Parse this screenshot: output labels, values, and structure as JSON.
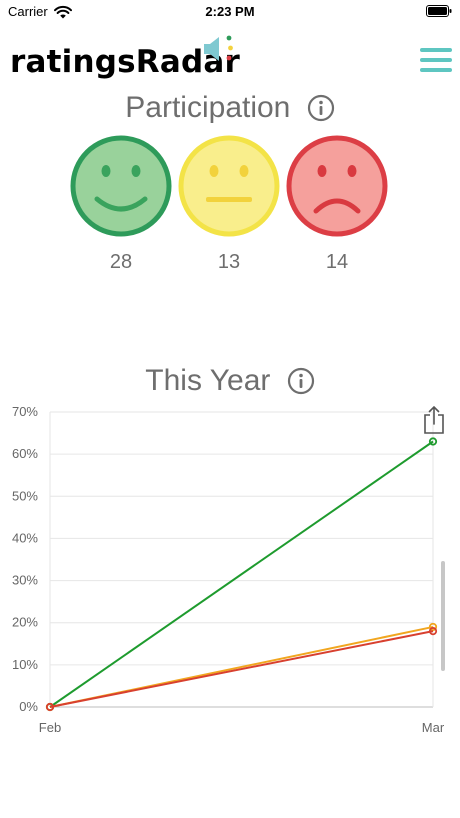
{
  "status_bar": {
    "carrier": "Carrier",
    "time": "2:23 PM",
    "wifi_icon": "wifi-icon",
    "battery_icon": "battery-icon"
  },
  "header": {
    "title": "ratingsRadar",
    "logo_icon": "megaphone-icon",
    "menu_icon": "hamburger-icon",
    "accent_color": "#5ec6c1"
  },
  "participation": {
    "title": "Participation",
    "info_icon": "info-icon",
    "faces": [
      {
        "mood": "happy",
        "icon": "happy-face-icon",
        "count": "28",
        "fill": "#99d29b",
        "stroke": "#2e9b5a"
      },
      {
        "mood": "neutral",
        "icon": "neutral-face-icon",
        "count": "13",
        "fill": "#f9ee8c",
        "stroke": "#f3e347"
      },
      {
        "mood": "sad",
        "icon": "sad-face-icon",
        "count": "14",
        "fill": "#f5a09c",
        "stroke": "#dc3e45"
      }
    ]
  },
  "this_year": {
    "title": "This Year",
    "info_icon": "info-icon",
    "share_icon": "share-icon"
  },
  "chart_data": {
    "type": "line",
    "categories": [
      "Feb",
      "Mar"
    ],
    "ylim": [
      0,
      70
    ],
    "y_ticks": [
      "0%",
      "10%",
      "20%",
      "30%",
      "40%",
      "50%",
      "60%",
      "70%"
    ],
    "grid": true,
    "series": [
      {
        "color": "#1e9b2e",
        "values": [
          0,
          63
        ]
      },
      {
        "color": "#f1a61f",
        "values": [
          0,
          19
        ]
      },
      {
        "color": "#d8402f",
        "values": [
          0,
          18
        ]
      }
    ]
  }
}
